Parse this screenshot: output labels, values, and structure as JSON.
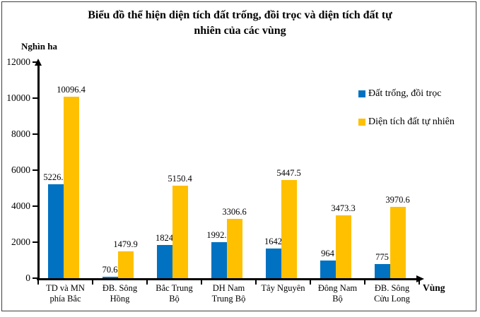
{
  "chart_data": {
    "type": "bar",
    "title": "Biểu đồ thể hiện diện tích đất trống, đồi trọc và diện tích đất tự\nnhiên của các vùng",
    "ylabel": "Nghìn ha",
    "xlabel": "Vùng",
    "ylim": [
      0,
      12000
    ],
    "yticks": [
      0,
      2000,
      4000,
      6000,
      8000,
      10000,
      12000
    ],
    "grid": false,
    "legend_position": "upper right",
    "data_labels": true,
    "categories": [
      "TD và MN\nphía Bắc",
      "ĐB. Sông\nHồng",
      "Bắc Trung\nBộ",
      "DH Nam\nTrung Bộ",
      "Tây Nguyên",
      "Đông Nam\nBộ",
      "ĐB. Sông\nCửu Long"
    ],
    "series": [
      {
        "name": "Đất trống, đồi trọc",
        "color": "#0072C1",
        "values": [
          5226.5,
          70.6,
          1824,
          1992.7,
          1642,
          964,
          775
        ]
      },
      {
        "name": "Diện tích đất tự nhiên",
        "color": "#FFC000",
        "values": [
          10096.4,
          1479.9,
          5150.4,
          3306.6,
          5447.5,
          3473.3,
          3970.6
        ]
      }
    ]
  }
}
